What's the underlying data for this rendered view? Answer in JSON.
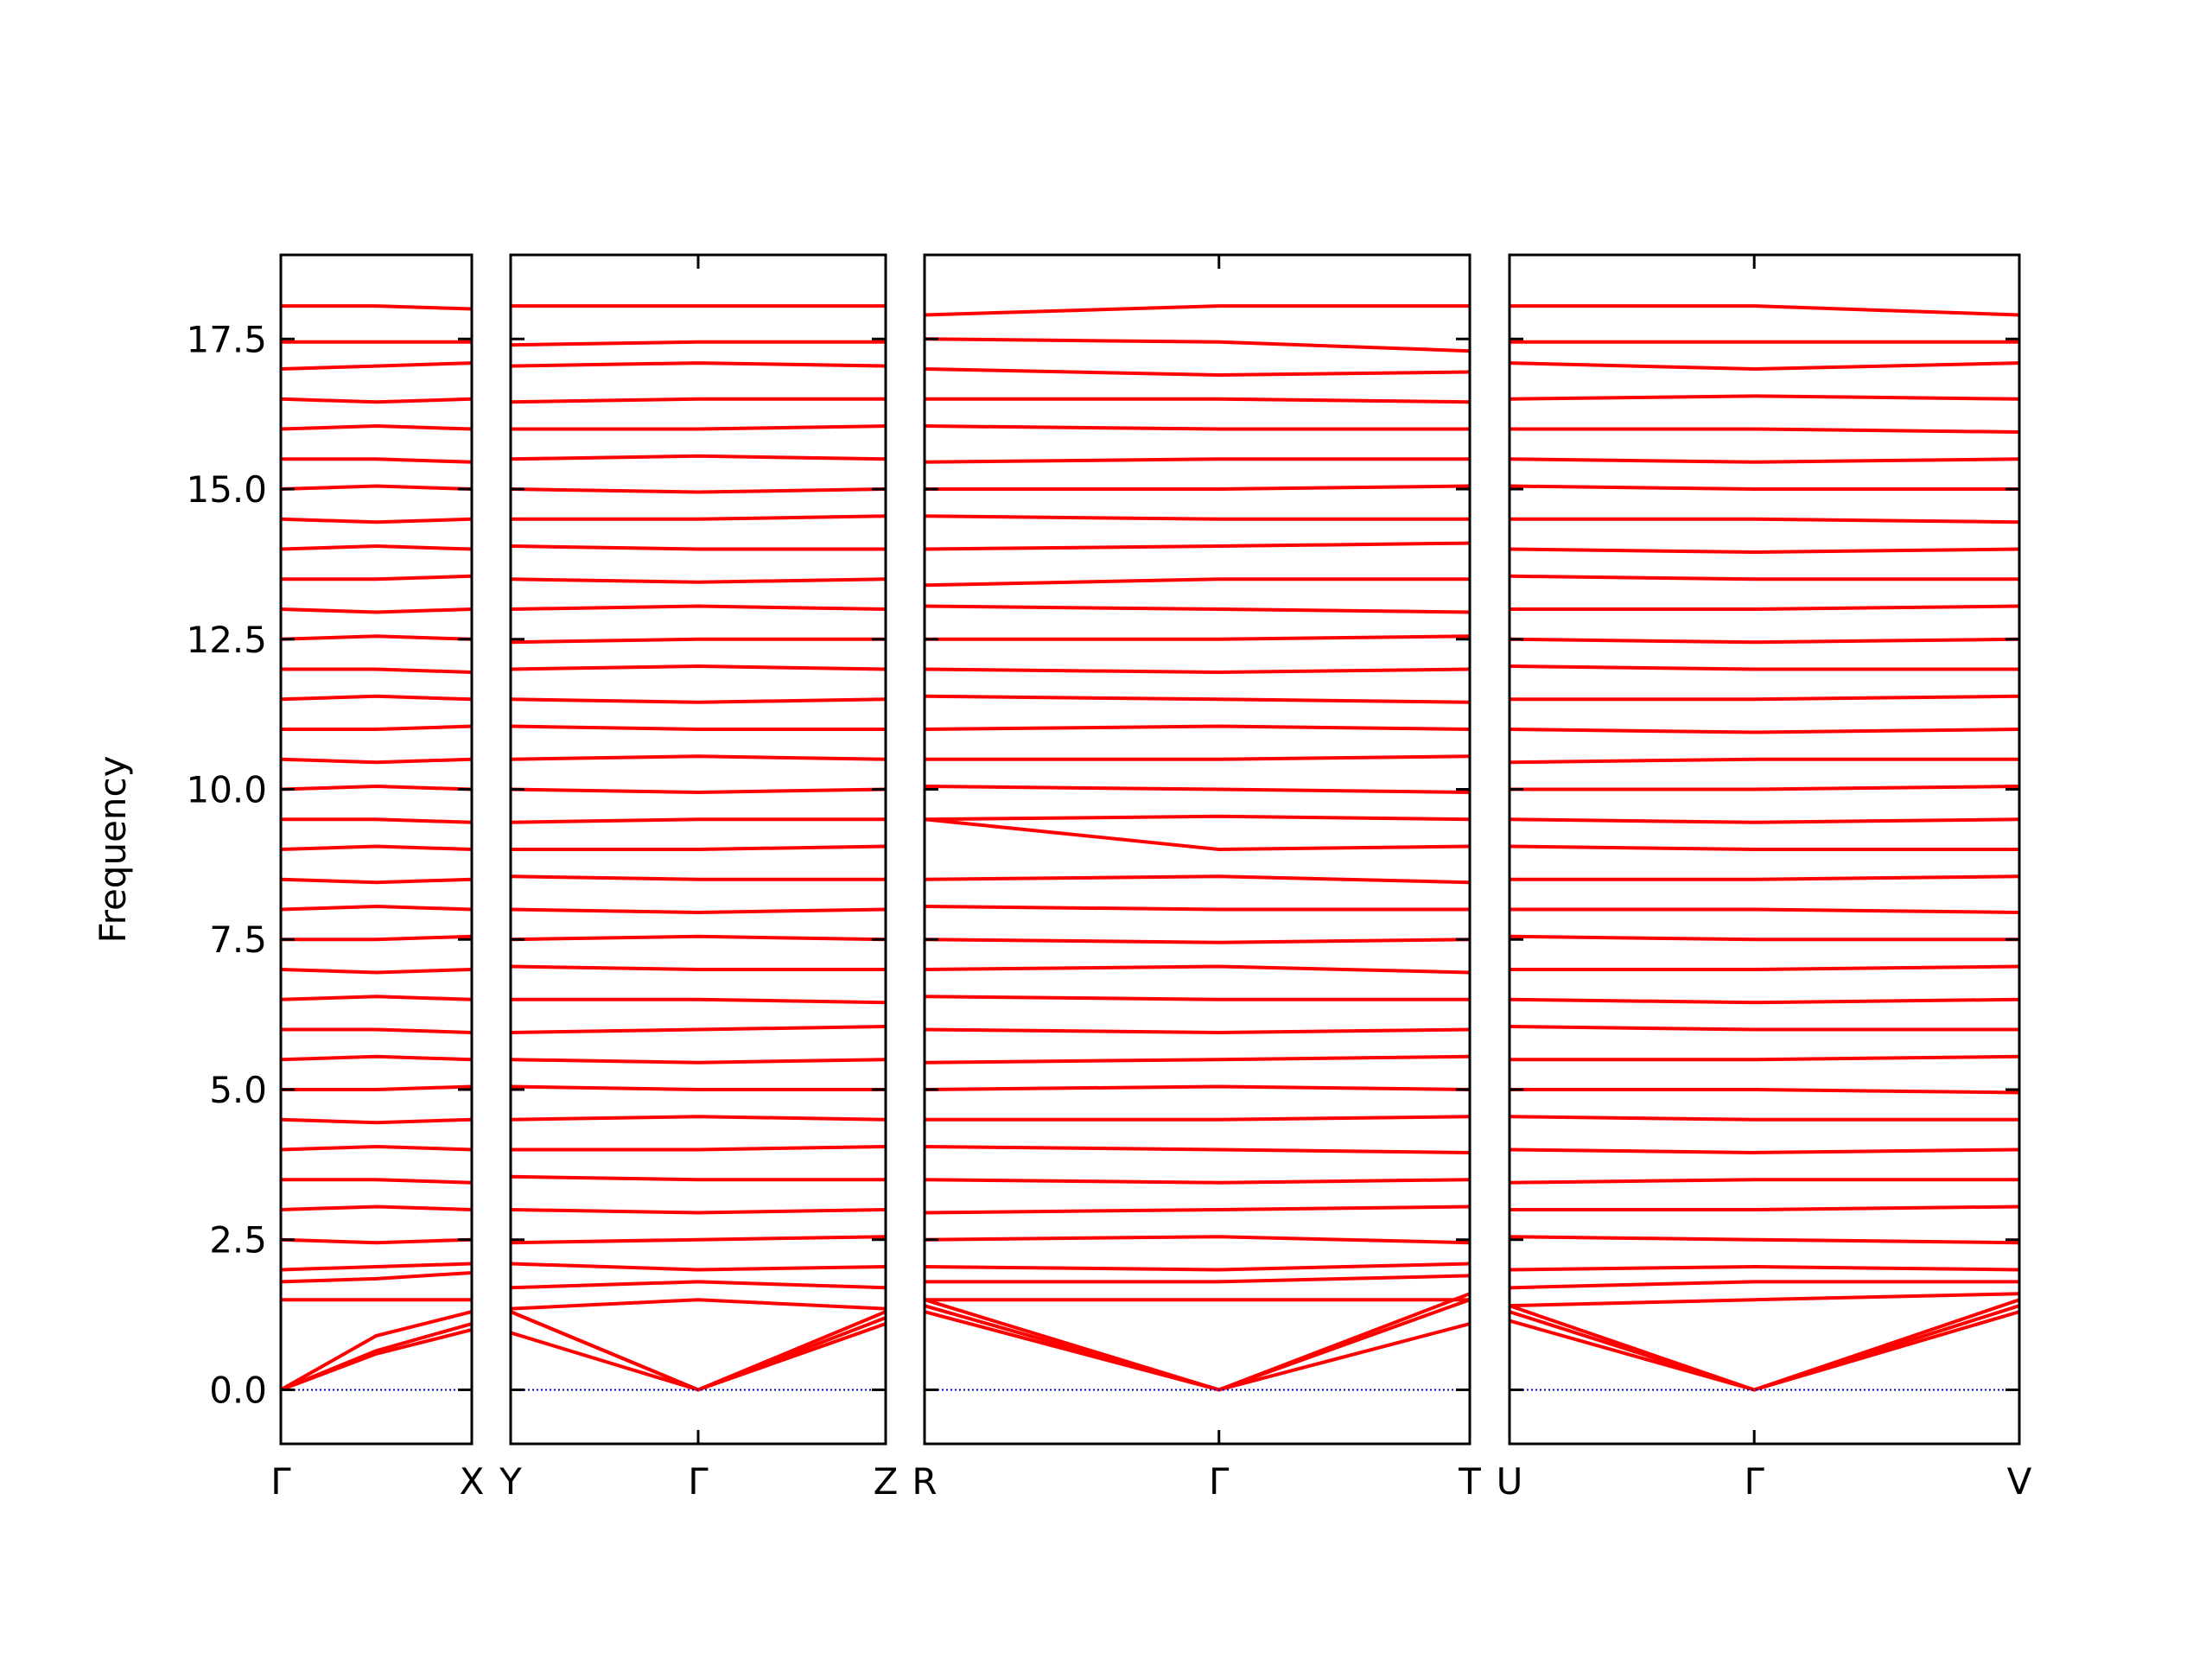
{
  "chart_data": [
    {
      "type": "line",
      "ylabel": "Frequency",
      "color": "#ff0000",
      "zero_line_color": "#0000cc",
      "xlim": [
        0,
        1
      ],
      "ylim": [
        -0.9,
        18.9
      ],
      "xticks": [
        {
          "value": 0,
          "label": "Γ"
        },
        {
          "value": 1,
          "label": "X"
        }
      ],
      "yticks": [
        {
          "value": 0,
          "label": "0.0"
        },
        2.5,
        {
          "value": 5,
          "label": "5.0"
        },
        7.5,
        {
          "value": 10,
          "label": "10.0"
        },
        12.5,
        {
          "value": 15,
          "label": "15.0"
        },
        17.5
      ],
      "x": [
        0,
        0.5,
        1
      ],
      "series": [
        {
          "values": [
            0,
            0.6,
            1.0
          ]
        },
        {
          "values": [
            0,
            0.65,
            1.1
          ]
        },
        {
          "values": [
            0,
            0.9,
            1.3
          ]
        },
        {
          "values": [
            1.5,
            1.5,
            1.5
          ]
        },
        {
          "values": [
            1.8,
            1.85,
            1.95
          ]
        },
        {
          "values": [
            2.0,
            2.05,
            2.1
          ]
        },
        {
          "values": [
            2.5,
            2.45,
            2.5
          ]
        },
        {
          "values": [
            3.0,
            3.05,
            3.0
          ]
        },
        {
          "values": [
            3.5,
            3.5,
            3.45
          ]
        },
        {
          "values": [
            4.0,
            4.05,
            4.0
          ]
        },
        {
          "values": [
            4.5,
            4.45,
            4.5
          ]
        },
        {
          "values": [
            5.0,
            5.0,
            5.05
          ]
        },
        {
          "values": [
            5.5,
            5.55,
            5.5
          ]
        },
        {
          "values": [
            6.0,
            6.0,
            5.95
          ]
        },
        {
          "values": [
            6.5,
            6.55,
            6.5
          ]
        },
        {
          "values": [
            7.0,
            6.95,
            7.0
          ]
        },
        {
          "values": [
            7.5,
            7.5,
            7.55
          ]
        },
        {
          "values": [
            8.0,
            8.05,
            8.0
          ]
        },
        {
          "values": [
            8.5,
            8.45,
            8.5
          ]
        },
        {
          "values": [
            9.0,
            9.05,
            9.0
          ]
        },
        {
          "values": [
            9.5,
            9.5,
            9.45
          ]
        },
        {
          "values": [
            10.0,
            10.05,
            10.0
          ]
        },
        {
          "values": [
            10.5,
            10.45,
            10.5
          ]
        },
        {
          "values": [
            11.0,
            11.0,
            11.05
          ]
        },
        {
          "values": [
            11.5,
            11.55,
            11.5
          ]
        },
        {
          "values": [
            12.0,
            12.0,
            11.95
          ]
        },
        {
          "values": [
            12.5,
            12.55,
            12.5
          ]
        },
        {
          "values": [
            13.0,
            12.95,
            13.0
          ]
        },
        {
          "values": [
            13.5,
            13.5,
            13.55
          ]
        },
        {
          "values": [
            14.0,
            14.05,
            14.0
          ]
        },
        {
          "values": [
            14.5,
            14.45,
            14.5
          ]
        },
        {
          "values": [
            15.0,
            15.05,
            15.0
          ]
        },
        {
          "values": [
            15.5,
            15.5,
            15.45
          ]
        },
        {
          "values": [
            16.0,
            16.05,
            16.0
          ]
        },
        {
          "values": [
            16.5,
            16.45,
            16.5
          ]
        },
        {
          "values": [
            17.0,
            17.05,
            17.1
          ]
        },
        {
          "values": [
            17.45,
            17.45,
            17.45
          ]
        },
        {
          "values": [
            18.05,
            18.05,
            18.0
          ]
        }
      ]
    },
    {
      "type": "line",
      "color": "#ff0000",
      "zero_line_color": "#0000cc",
      "xlim": [
        0,
        1
      ],
      "ylim": [
        -0.9,
        18.9
      ],
      "xticks": [
        {
          "value": 0,
          "label": "Y"
        },
        {
          "value": 0.5,
          "label": "Γ"
        },
        {
          "value": 1,
          "label": "Z"
        }
      ],
      "x": [
        0,
        0.5,
        1
      ],
      "series": [
        {
          "values": [
            0.95,
            0,
            1.1
          ]
        },
        {
          "values": [
            1.3,
            0,
            1.2
          ]
        },
        {
          "values": [
            1.3,
            0,
            1.3
          ]
        },
        {
          "values": [
            1.35,
            1.5,
            1.35
          ]
        },
        {
          "values": [
            1.7,
            1.8,
            1.7
          ]
        },
        {
          "values": [
            2.1,
            2.0,
            2.05
          ]
        },
        {
          "values": [
            2.45,
            2.5,
            2.55
          ]
        },
        {
          "values": [
            3.0,
            2.95,
            3.0
          ]
        },
        {
          "values": [
            3.55,
            3.5,
            3.5
          ]
        },
        {
          "values": [
            4.0,
            4.0,
            4.05
          ]
        },
        {
          "values": [
            4.5,
            4.55,
            4.5
          ]
        },
        {
          "values": [
            5.05,
            5.0,
            5.0
          ]
        },
        {
          "values": [
            5.5,
            5.45,
            5.5
          ]
        },
        {
          "values": [
            5.95,
            6.0,
            6.05
          ]
        },
        {
          "values": [
            6.5,
            6.5,
            6.45
          ]
        },
        {
          "values": [
            7.05,
            7.0,
            7.0
          ]
        },
        {
          "values": [
            7.5,
            7.55,
            7.5
          ]
        },
        {
          "values": [
            8.0,
            7.95,
            8.0
          ]
        },
        {
          "values": [
            8.55,
            8.5,
            8.5
          ]
        },
        {
          "values": [
            9.0,
            9.0,
            9.05
          ]
        },
        {
          "values": [
            9.45,
            9.5,
            9.5
          ]
        },
        {
          "values": [
            10.0,
            9.95,
            10.0
          ]
        },
        {
          "values": [
            10.5,
            10.55,
            10.5
          ]
        },
        {
          "values": [
            11.05,
            11.0,
            11.0
          ]
        },
        {
          "values": [
            11.5,
            11.45,
            11.5
          ]
        },
        {
          "values": [
            12.0,
            12.05,
            12.0
          ]
        },
        {
          "values": [
            12.45,
            12.5,
            12.5
          ]
        },
        {
          "values": [
            13.0,
            13.05,
            13.0
          ]
        },
        {
          "values": [
            13.5,
            13.45,
            13.5
          ]
        },
        {
          "values": [
            14.05,
            14.0,
            14.0
          ]
        },
        {
          "values": [
            14.5,
            14.5,
            14.55
          ]
        },
        {
          "values": [
            15.0,
            14.95,
            15.0
          ]
        },
        {
          "values": [
            15.5,
            15.55,
            15.5
          ]
        },
        {
          "values": [
            16.0,
            16.0,
            16.05
          ]
        },
        {
          "values": [
            16.45,
            16.5,
            16.5
          ]
        },
        {
          "values": [
            17.05,
            17.1,
            17.05
          ]
        },
        {
          "values": [
            17.4,
            17.45,
            17.45
          ]
        },
        {
          "values": [
            18.05,
            18.05,
            18.05
          ]
        }
      ]
    },
    {
      "type": "line",
      "color": "#ff0000",
      "zero_line_color": "#0000cc",
      "xlim": [
        0,
        1
      ],
      "ylim": [
        -0.9,
        18.9
      ],
      "xticks": [
        {
          "value": 0,
          "label": "R"
        },
        {
          "value": 0.54,
          "label": "Γ"
        },
        {
          "value": 1,
          "label": "T"
        }
      ],
      "x": [
        0,
        0.54,
        1
      ],
      "series": [
        {
          "values": [
            1.3,
            0,
            1.1
          ]
        },
        {
          "values": [
            1.4,
            0,
            1.5
          ]
        },
        {
          "values": [
            1.5,
            0,
            1.6
          ]
        },
        {
          "values": [
            1.5,
            1.5,
            1.5
          ]
        },
        {
          "values": [
            1.8,
            1.8,
            1.9
          ]
        },
        {
          "values": [
            2.05,
            2.0,
            2.1
          ]
        },
        {
          "values": [
            2.5,
            2.55,
            2.45
          ]
        },
        {
          "values": [
            2.95,
            3.0,
            3.05
          ]
        },
        {
          "values": [
            3.5,
            3.45,
            3.5
          ]
        },
        {
          "values": [
            4.05,
            4.0,
            3.95
          ]
        },
        {
          "values": [
            4.5,
            4.5,
            4.55
          ]
        },
        {
          "values": [
            5.0,
            5.05,
            5.0
          ]
        },
        {
          "values": [
            5.45,
            5.5,
            5.55
          ]
        },
        {
          "values": [
            6.0,
            5.95,
            6.0
          ]
        },
        {
          "values": [
            6.55,
            6.5,
            6.5
          ]
        },
        {
          "values": [
            7.0,
            7.05,
            6.95
          ]
        },
        {
          "values": [
            7.5,
            7.45,
            7.5
          ]
        },
        {
          "values": [
            8.05,
            8.0,
            8.0
          ]
        },
        {
          "values": [
            8.5,
            8.55,
            8.45
          ]
        },
        {
          "values": [
            9.5,
            9.0,
            9.05
          ]
        },
        {
          "values": [
            9.5,
            9.55,
            9.5
          ]
        },
        {
          "values": [
            10.05,
            10.0,
            9.95
          ]
        },
        {
          "values": [
            10.5,
            10.5,
            10.55
          ]
        },
        {
          "values": [
            11.0,
            11.05,
            11.0
          ]
        },
        {
          "values": [
            11.55,
            11.5,
            11.45
          ]
        },
        {
          "values": [
            12.0,
            11.95,
            12.0
          ]
        },
        {
          "values": [
            12.5,
            12.5,
            12.55
          ]
        },
        {
          "values": [
            13.05,
            13.0,
            12.95
          ]
        },
        {
          "values": [
            13.4,
            13.5,
            13.5
          ]
        },
        {
          "values": [
            14.0,
            14.05,
            14.1
          ]
        },
        {
          "values": [
            14.55,
            14.5,
            14.5
          ]
        },
        {
          "values": [
            15.0,
            15.0,
            15.05
          ]
        },
        {
          "values": [
            15.45,
            15.5,
            15.5
          ]
        },
        {
          "values": [
            16.05,
            16.0,
            16.0
          ]
        },
        {
          "values": [
            16.5,
            16.5,
            16.45
          ]
        },
        {
          "values": [
            17.0,
            16.9,
            16.95
          ]
        },
        {
          "values": [
            17.5,
            17.45,
            17.3
          ]
        },
        {
          "values": [
            17.9,
            18.05,
            18.05
          ]
        }
      ]
    },
    {
      "type": "line",
      "color": "#ff0000",
      "zero_line_color": "#0000cc",
      "xlim": [
        0,
        1
      ],
      "ylim": [
        -0.9,
        18.9
      ],
      "xticks": [
        {
          "value": 0,
          "label": "U"
        },
        {
          "value": 0.48,
          "label": "Γ"
        },
        {
          "value": 1,
          "label": "V"
        }
      ],
      "x": [
        0,
        0.48,
        1
      ],
      "series": [
        {
          "values": [
            1.15,
            0,
            1.3
          ]
        },
        {
          "values": [
            1.3,
            0,
            1.4
          ]
        },
        {
          "values": [
            1.4,
            0,
            1.5
          ]
        },
        {
          "values": [
            1.4,
            1.5,
            1.6
          ]
        },
        {
          "values": [
            1.7,
            1.8,
            1.8
          ]
        },
        {
          "values": [
            2.0,
            2.05,
            2.0
          ]
        },
        {
          "values": [
            2.55,
            2.5,
            2.45
          ]
        },
        {
          "values": [
            3.0,
            3.0,
            3.05
          ]
        },
        {
          "values": [
            3.45,
            3.5,
            3.5
          ]
        },
        {
          "values": [
            4.0,
            3.95,
            4.0
          ]
        },
        {
          "values": [
            4.55,
            4.5,
            4.5
          ]
        },
        {
          "values": [
            5.0,
            5.0,
            4.95
          ]
        },
        {
          "values": [
            5.5,
            5.5,
            5.55
          ]
        },
        {
          "values": [
            6.05,
            6.0,
            6.0
          ]
        },
        {
          "values": [
            6.5,
            6.45,
            6.5
          ]
        },
        {
          "values": [
            7.0,
            7.0,
            7.05
          ]
        },
        {
          "values": [
            7.55,
            7.5,
            7.5
          ]
        },
        {
          "values": [
            8.0,
            8.0,
            7.95
          ]
        },
        {
          "values": [
            8.5,
            8.5,
            8.55
          ]
        },
        {
          "values": [
            9.05,
            9.0,
            9.0
          ]
        },
        {
          "values": [
            9.5,
            9.45,
            9.5
          ]
        },
        {
          "values": [
            10.0,
            10.0,
            10.05
          ]
        },
        {
          "values": [
            10.45,
            10.5,
            10.5
          ]
        },
        {
          "values": [
            11.0,
            10.95,
            11.0
          ]
        },
        {
          "values": [
            11.5,
            11.5,
            11.55
          ]
        },
        {
          "values": [
            12.05,
            12.0,
            12.0
          ]
        },
        {
          "values": [
            12.5,
            12.45,
            12.5
          ]
        },
        {
          "values": [
            13.0,
            13.0,
            13.05
          ]
        },
        {
          "values": [
            13.55,
            13.5,
            13.5
          ]
        },
        {
          "values": [
            14.0,
            13.95,
            14.0
          ]
        },
        {
          "values": [
            14.5,
            14.5,
            14.45
          ]
        },
        {
          "values": [
            15.05,
            15.0,
            15.0
          ]
        },
        {
          "values": [
            15.5,
            15.45,
            15.5
          ]
        },
        {
          "values": [
            16.0,
            16.0,
            15.95
          ]
        },
        {
          "values": [
            16.5,
            16.55,
            16.5
          ]
        },
        {
          "values": [
            17.1,
            17.0,
            17.1
          ]
        },
        {
          "values": [
            17.45,
            17.45,
            17.45
          ]
        },
        {
          "values": [
            18.05,
            18.05,
            17.9
          ]
        }
      ]
    }
  ]
}
